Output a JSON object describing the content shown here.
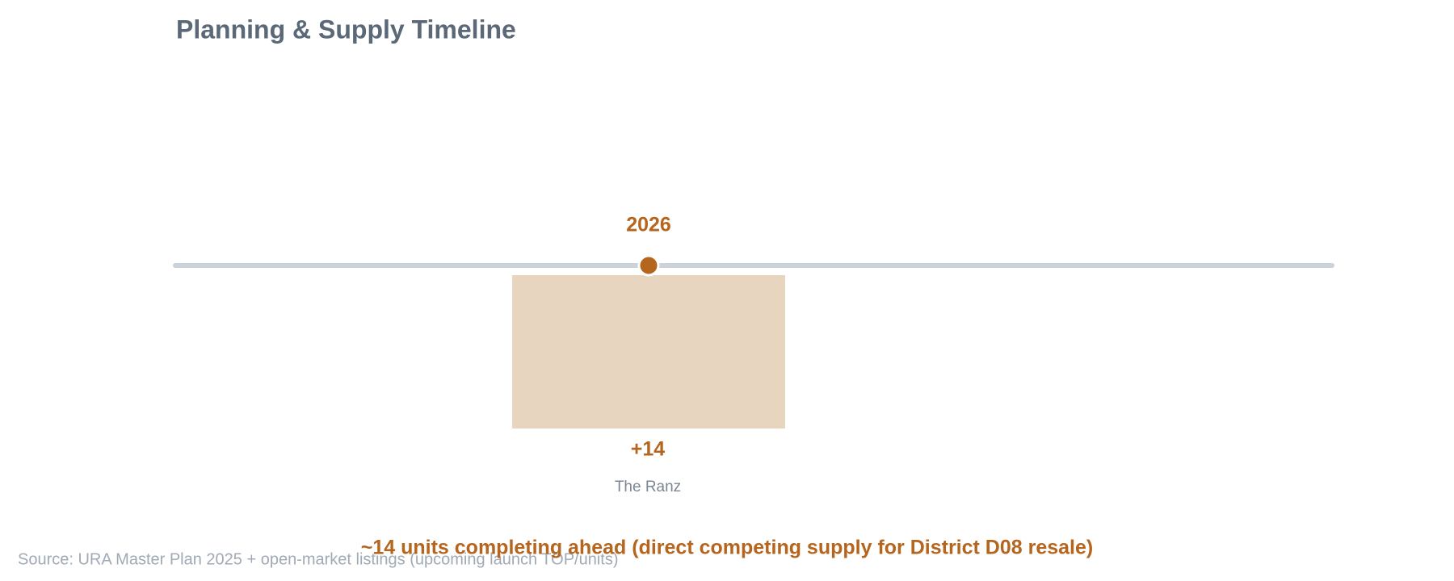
{
  "header": {
    "title": "Planning & Supply Timeline"
  },
  "timeline": {
    "events": [
      {
        "year": "2026",
        "units": "+14",
        "project": "The Ranz"
      }
    ]
  },
  "summary": "~14 units completing ahead (direct competing supply for District D08 resale)",
  "source": "Source: URA Master Plan 2025 + open-market listings (upcoming launch TOP/units)"
}
